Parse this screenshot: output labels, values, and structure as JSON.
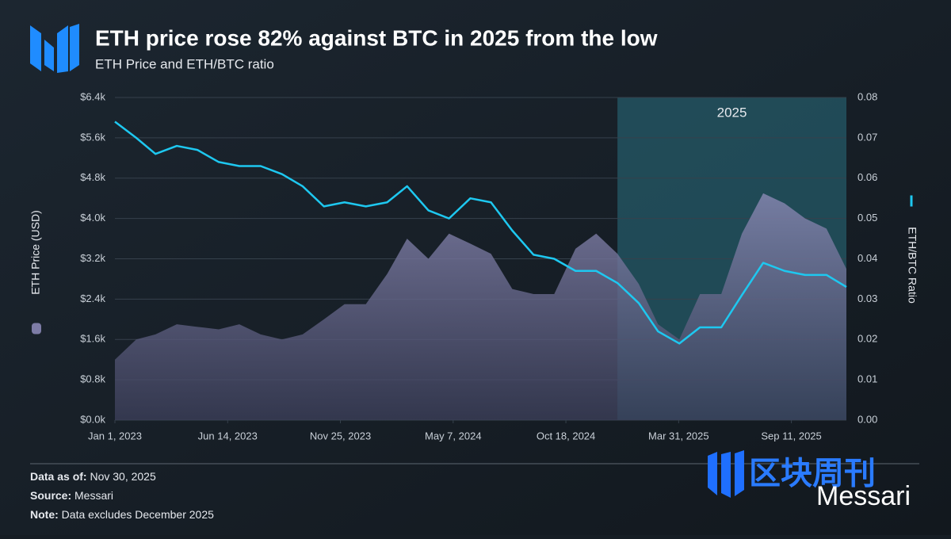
{
  "chart_data": {
    "type": "combo",
    "title": "ETH price rose 82% against BTC in 2025 from the low",
    "subtitle": "ETH Price and ETH/BTC ratio",
    "x": [
      "2023-01-01",
      "2023-02-01",
      "2023-03-01",
      "2023-04-01",
      "2023-05-01",
      "2023-06-01",
      "2023-07-01",
      "2023-08-01",
      "2023-09-01",
      "2023-10-01",
      "2023-11-01",
      "2023-12-01",
      "2024-01-01",
      "2024-02-01",
      "2024-03-01",
      "2024-04-01",
      "2024-05-01",
      "2024-06-01",
      "2024-07-01",
      "2024-08-01",
      "2024-09-01",
      "2024-10-01",
      "2024-11-01",
      "2024-12-01",
      "2025-01-01",
      "2025-02-01",
      "2025-03-01",
      "2025-04-01",
      "2025-05-01",
      "2025-06-01",
      "2025-07-01",
      "2025-08-01",
      "2025-09-01",
      "2025-10-01",
      "2025-11-01",
      "2025-11-30"
    ],
    "series": [
      {
        "name": "ETH Price (USD)",
        "kind": "area",
        "color": "#7d7ca6",
        "values": [
          1200,
          1600,
          1700,
          1900,
          1850,
          1800,
          1900,
          1700,
          1600,
          1700,
          2000,
          2300,
          2300,
          2900,
          3600,
          3200,
          3700,
          3500,
          3300,
          2600,
          2500,
          2500,
          3400,
          3700,
          3300,
          2700,
          1900,
          1600,
          2500,
          2500,
          3700,
          4500,
          4300,
          4000,
          3800,
          3000
        ]
      },
      {
        "name": "ETH/BTC Ratio",
        "kind": "line",
        "axis": "y2",
        "color": "#1ec8f0",
        "values": [
          0.074,
          0.07,
          0.066,
          0.068,
          0.067,
          0.064,
          0.063,
          0.063,
          0.061,
          0.058,
          0.053,
          0.054,
          0.053,
          0.054,
          0.058,
          0.052,
          0.05,
          0.055,
          0.054,
          0.047,
          0.041,
          0.04,
          0.037,
          0.037,
          0.034,
          0.029,
          0.022,
          0.019,
          0.023,
          0.023,
          0.031,
          0.039,
          0.037,
          0.036,
          0.036,
          0.033
        ]
      }
    ],
    "xlim": [
      "2023-01-01",
      "2025-11-30"
    ],
    "xticks": [
      {
        "value": "2023-01-01",
        "label": "Jan 1, 2023"
      },
      {
        "value": "2023-06-14",
        "label": "Jun 14, 2023"
      },
      {
        "value": "2023-11-25",
        "label": "Nov 25, 2023"
      },
      {
        "value": "2024-05-07",
        "label": "May 7, 2024"
      },
      {
        "value": "2024-10-18",
        "label": "Oct 18, 2024"
      },
      {
        "value": "2025-03-31",
        "label": "Mar 31, 2025"
      },
      {
        "value": "2025-09-11",
        "label": "Sep 11, 2025"
      }
    ],
    "ylim": [
      0,
      6400
    ],
    "yticks": [
      {
        "value": 0,
        "label": "$0.0k"
      },
      {
        "value": 800,
        "label": "$0.8k"
      },
      {
        "value": 1600,
        "label": "$1.6k"
      },
      {
        "value": 2400,
        "label": "$2.4k"
      },
      {
        "value": 3200,
        "label": "$3.2k"
      },
      {
        "value": 4000,
        "label": "$4.0k"
      },
      {
        "value": 4800,
        "label": "$4.8k"
      },
      {
        "value": 5600,
        "label": "$5.6k"
      },
      {
        "value": 6400,
        "label": "$6.4k"
      }
    ],
    "y2lim": [
      0,
      0.08
    ],
    "y2ticks": [
      {
        "value": 0,
        "label": "0.00"
      },
      0.01,
      0.02,
      0.03,
      0.04,
      0.05,
      0.06,
      0.07,
      0.08
    ],
    "grid": true,
    "highlight": {
      "label": "2025",
      "from": "2025-01-01",
      "to": "2025-11-30"
    }
  },
  "footer": {
    "data_as_of": {
      "label": "Data as of:",
      "text": "Nov 30, 2025"
    },
    "source": {
      "label": "Source:",
      "text": "Messari"
    },
    "note": {
      "label": "Note:",
      "text": "Data excludes December 2025"
    }
  },
  "watermark": {
    "chinese": "区块周刊",
    "brand": "Messari"
  }
}
